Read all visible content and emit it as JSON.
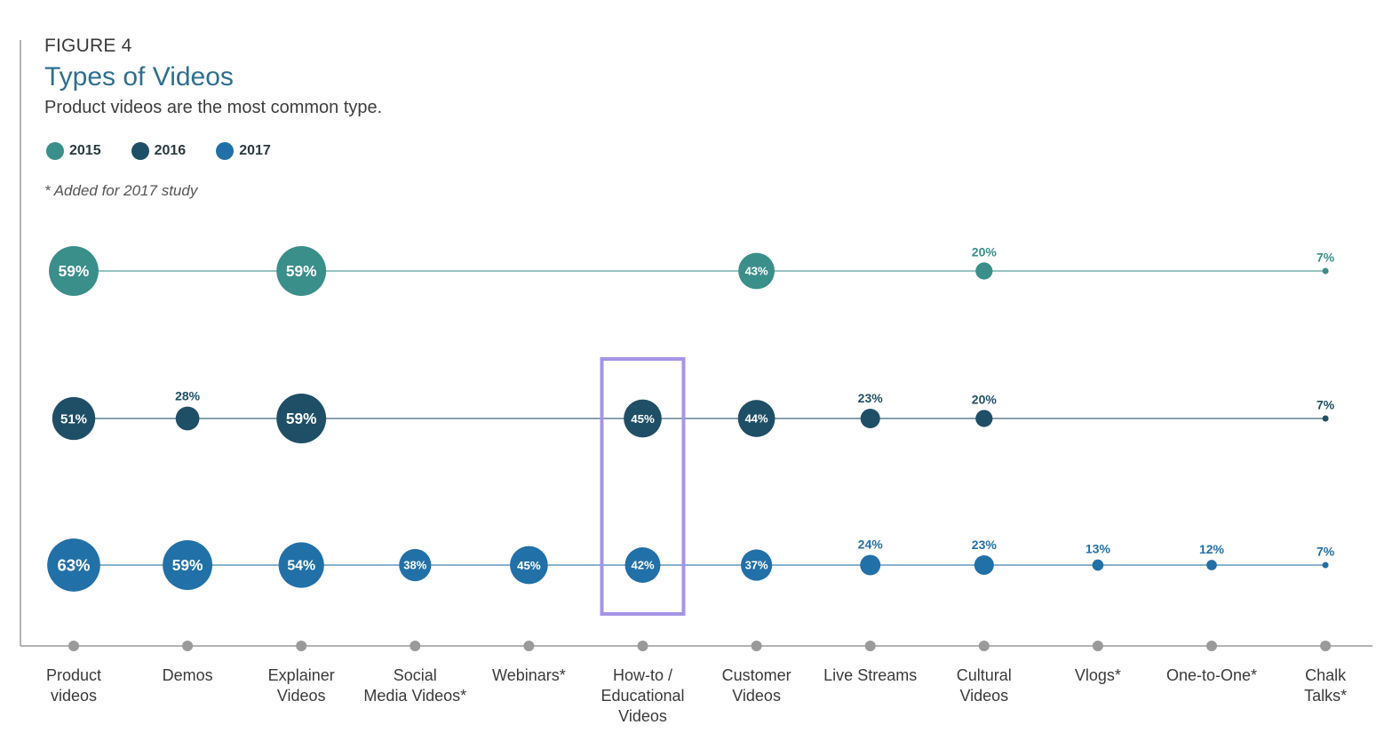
{
  "figure_label": "FIGURE 4",
  "title": "Types of Videos",
  "subtitle": "Product videos are the most common type.",
  "legend": [
    {
      "label": "2015",
      "color": "#3a8f8a"
    },
    {
      "label": "2016",
      "color": "#1f4f66"
    },
    {
      "label": "2017",
      "color": "#2270a8"
    }
  ],
  "note": "* Added for 2017 study",
  "chart_data": {
    "type": "scatter",
    "title": "Types of Videos",
    "categories": [
      "Product videos",
      "Demos",
      "Explainer Videos",
      "Social Media Videos*",
      "Webinars*",
      "How-to / Educational Videos",
      "Customer Videos",
      "Live Streams",
      "Cultural Videos",
      "Vlogs*",
      "One-to-One*",
      "Chalk Talks*"
    ],
    "series": [
      {
        "name": "2015",
        "color": "#3a8f8a",
        "values": [
          59,
          null,
          59,
          null,
          null,
          null,
          43,
          null,
          20,
          null,
          null,
          7
        ]
      },
      {
        "name": "2016",
        "color": "#1f4f66",
        "values": [
          51,
          28,
          59,
          null,
          null,
          45,
          44,
          23,
          20,
          null,
          null,
          7
        ]
      },
      {
        "name": "2017",
        "color": "#2270a8",
        "values": [
          63,
          59,
          54,
          38,
          45,
          42,
          37,
          24,
          23,
          13,
          12,
          7
        ]
      }
    ],
    "highlight_category": "How-to / Educational Videos",
    "highlight_color": "#a594e6",
    "value_suffix": "%"
  }
}
